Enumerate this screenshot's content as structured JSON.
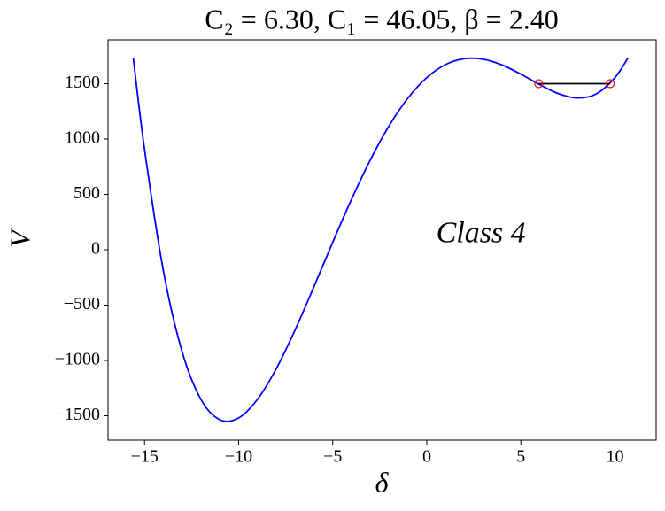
{
  "chart_data": {
    "type": "line",
    "title": "C₂ = 6.30,  C₁ = 46.05,  β = 2.40",
    "x_label": "δ",
    "y_label": "V",
    "annotation": "Class 4",
    "annotation_x": 0.5,
    "annotation_y": 130,
    "annotation_color": "#00bfbf",
    "x": [
      -15.6,
      -15,
      -14,
      -13,
      -12,
      -11,
      -10,
      -9,
      -8,
      -7,
      -6,
      -5,
      -4,
      -3,
      -2,
      -1,
      0,
      1,
      2,
      3,
      4,
      5,
      6,
      7,
      8,
      9,
      10,
      10.7
    ],
    "series": [
      {
        "color": "#0000ff",
        "values": [
          1735,
          907,
          -189,
          -923,
          -1353,
          -1536,
          -1520,
          -1352,
          -1075,
          -725,
          -335,
          67,
          455,
          811,
          1120,
          1370,
          1555,
          1673,
          1726,
          1721,
          1669,
          1586,
          1492,
          1410,
          1371,
          1407,
          1555,
          1735
        ]
      }
    ],
    "markers": {
      "x": [
        5.95,
        9.75
      ],
      "values": [
        1500,
        1500
      ],
      "color": "#ff0000",
      "line_color": "#000000"
    },
    "xlim": [
      -16.94,
      12.19
    ],
    "ylim": [
      -1720,
      1896
    ],
    "xticks": [
      {
        "value": -15,
        "label": "−15"
      },
      {
        "value": -10,
        "label": "−10"
      },
      {
        "value": -5,
        "label": "−5"
      },
      0,
      5,
      10
    ],
    "yticks": [
      {
        "value": -1500,
        "label": "−1500"
      },
      {
        "value": -1000,
        "label": "−1000"
      },
      {
        "value": -500,
        "label": "−500"
      },
      0,
      500,
      1000,
      1500
    ]
  }
}
